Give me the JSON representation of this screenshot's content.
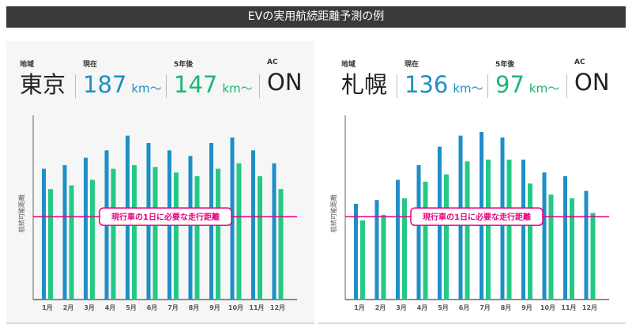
{
  "title": "EVの実用航続距離予測の例",
  "colors": {
    "current": "#1f8fc8",
    "five_years": "#25c985",
    "required_line": "#e4007f"
  },
  "panels": [
    {
      "labels": {
        "region": "地域",
        "current": "現在",
        "five_years": "5年後",
        "ac": "AC"
      },
      "region": "東京",
      "current_value": "187",
      "five_years_value": "147",
      "unit": "km〜",
      "ac": "ON"
    },
    {
      "labels": {
        "region": "地域",
        "current": "現在",
        "five_years": "5年後",
        "ac": "AC"
      },
      "region": "札幌",
      "current_value": "136",
      "five_years_value": "97",
      "unit": "km〜",
      "ac": "ON"
    }
  ],
  "chart_data": [
    {
      "type": "bar",
      "title": "東京",
      "ylabel": "航続可能距離",
      "xlabel": "",
      "categories": [
        "1月",
        "2月",
        "3月",
        "4月",
        "5月",
        "6月",
        "7月",
        "8月",
        "9月",
        "10月",
        "11月",
        "12月"
      ],
      "series": [
        {
          "name": "現在",
          "values": [
            71,
            73,
            77,
            81,
            89,
            85,
            81,
            78,
            85,
            88,
            81,
            74
          ]
        },
        {
          "name": "5年後",
          "values": [
            60,
            62,
            65,
            71,
            73,
            72,
            69,
            67,
            71,
            74,
            67,
            60
          ]
        }
      ],
      "reference_line": {
        "label": "現行車の1日に必要な走行距離",
        "value": 45
      },
      "ylim": [
        0,
        100
      ],
      "grid": false
    },
    {
      "type": "bar",
      "title": "札幌",
      "ylabel": "航続可能距離",
      "xlabel": "",
      "categories": [
        "1月",
        "2月",
        "3月",
        "4月",
        "5月",
        "6月",
        "7月",
        "8月",
        "9月",
        "10月",
        "11月",
        "12月"
      ],
      "series": [
        {
          "name": "現在",
          "values": [
            52,
            54,
            65,
            73,
            83,
            89,
            91,
            88,
            76,
            69,
            67,
            59
          ]
        },
        {
          "name": "5年後",
          "values": [
            43,
            46,
            55,
            64,
            68,
            75,
            76,
            76,
            63,
            57,
            55,
            47
          ]
        }
      ],
      "reference_line": {
        "label": "現行車の1日に必要な走行距離",
        "value": 45
      },
      "ylim": [
        0,
        100
      ],
      "grid": false
    }
  ]
}
